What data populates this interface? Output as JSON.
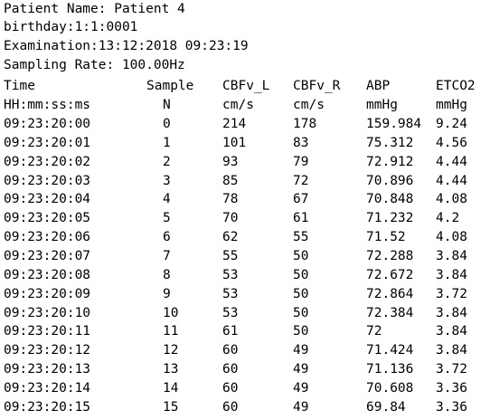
{
  "header": {
    "patient_name": "Patient Name: Patient 4",
    "birthday": "birthday:1:1:0001",
    "examination": "Examination:13:12:2018 09:23:19",
    "sampling_rate": "Sampling Rate: 100.00Hz"
  },
  "columns": [
    {
      "name": "Time",
      "unit": "HH:mm:ss:ms"
    },
    {
      "name": "Sample",
      "unit": "N"
    },
    {
      "name": "CBFv_L",
      "unit": "cm/s"
    },
    {
      "name": "CBFv_R",
      "unit": "cm/s"
    },
    {
      "name": "ABP",
      "unit": "mmHg"
    },
    {
      "name": "ETCO2",
      "unit": "mmHg"
    }
  ],
  "rows": [
    [
      "09:23:20:00",
      "0",
      "214",
      "178",
      "159.984",
      "9.24"
    ],
    [
      "09:23:20:01",
      "1",
      "101",
      "83",
      "75.312",
      "4.56"
    ],
    [
      "09:23:20:02",
      "2",
      "93",
      "79",
      "72.912",
      "4.44"
    ],
    [
      "09:23:20:03",
      "3",
      "85",
      "72",
      "70.896",
      "4.44"
    ],
    [
      "09:23:20:04",
      "4",
      "78",
      "67",
      "70.848",
      "4.08"
    ],
    [
      "09:23:20:05",
      "5",
      "70",
      "61",
      "71.232",
      "4.2"
    ],
    [
      "09:23:20:06",
      "6",
      "62",
      "55",
      "71.52",
      "4.08"
    ],
    [
      "09:23:20:07",
      "7",
      "55",
      "50",
      "72.288",
      "3.84"
    ],
    [
      "09:23:20:08",
      "8",
      "53",
      "50",
      "72.672",
      "3.84"
    ],
    [
      "09:23:20:09",
      "9",
      "53",
      "50",
      "72.864",
      "3.72"
    ],
    [
      "09:23:20:10",
      "10",
      "53",
      "50",
      "72.384",
      "3.84"
    ],
    [
      "09:23:20:11",
      "11",
      "61",
      "50",
      "72",
      "3.84"
    ],
    [
      "09:23:20:12",
      "12",
      "60",
      "49",
      "71.424",
      "3.84"
    ],
    [
      "09:23:20:13",
      "13",
      "60",
      "49",
      "71.136",
      "3.72"
    ],
    [
      "09:23:20:14",
      "14",
      "60",
      "49",
      "70.608",
      "3.36"
    ],
    [
      "09:23:20:15",
      "15",
      "60",
      "49",
      "69.84",
      "3.36"
    ]
  ]
}
